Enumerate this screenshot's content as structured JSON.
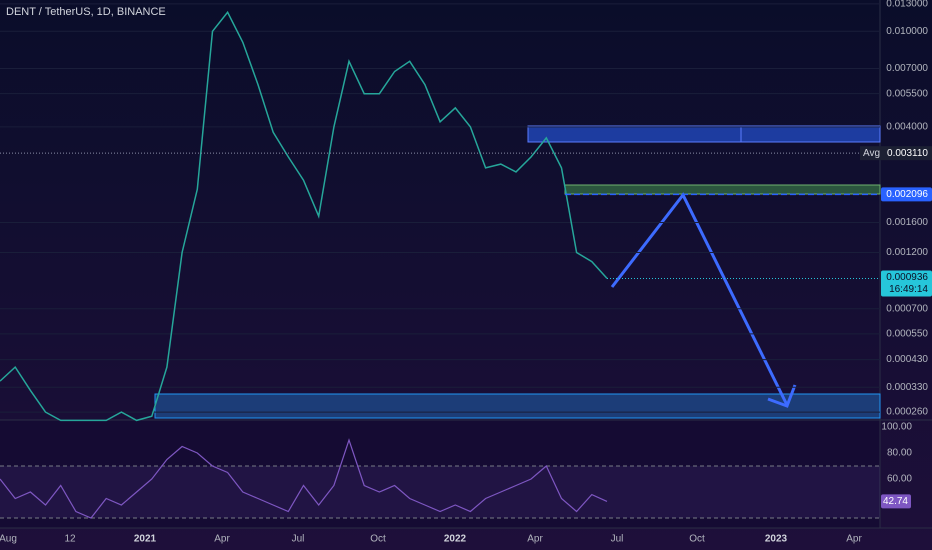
{
  "header": {
    "symbol": "DENT / TetherUS, 1D, BINANCE"
  },
  "price_axis": {
    "scale": "log",
    "range": [
      0.000241,
      0.0135
    ],
    "ticks": [
      {
        "value": 0.013,
        "label": "0.013000"
      },
      {
        "value": 0.01,
        "label": "0.010000"
      },
      {
        "value": 0.007,
        "label": "0.007000"
      },
      {
        "value": 0.0055,
        "label": "0.005500"
      },
      {
        "value": 0.004,
        "label": "0.004000"
      },
      {
        "value": 0.0016,
        "label": "0.001600"
      },
      {
        "value": 0.0012,
        "label": "0.001200"
      },
      {
        "value": 0.0007,
        "label": "0.000700"
      },
      {
        "value": 0.00055,
        "label": "0.000550"
      },
      {
        "value": 0.00043,
        "label": "0.000430"
      },
      {
        "value": 0.00033,
        "label": "0.000330"
      },
      {
        "value": 0.00026,
        "label": "0.000260"
      }
    ]
  },
  "markers": {
    "avg": {
      "label": "Avg",
      "price": {
        "value": 0.00311,
        "label": "0.003110"
      }
    },
    "level": {
      "value": 0.002096,
      "label": "0.002096"
    },
    "last": {
      "value": 0.000936,
      "label": "0.000936",
      "countdown": "16:49:14"
    }
  },
  "time_axis": {
    "labels": [
      "Aug",
      "12",
      "2021",
      "Apr",
      "Jul",
      "Oct",
      "2022",
      "Apr",
      "Jul",
      "Oct",
      "2023",
      "Apr"
    ]
  },
  "price": {
    "color": "#26a69a",
    "values": [
      0.00035,
      0.0004,
      0.00032,
      0.00026,
      0.00024,
      0.00024,
      0.00024,
      0.00024,
      0.00026,
      0.00024,
      0.00025,
      0.0004,
      0.0012,
      0.0022,
      0.01,
      0.012,
      0.009,
      0.006,
      0.0038,
      0.003,
      0.0024,
      0.0017,
      0.004,
      0.0075,
      0.0055,
      0.0055,
      0.0068,
      0.0075,
      0.006,
      0.0042,
      0.0048,
      0.004,
      0.0027,
      0.0028,
      0.0026,
      0.003,
      0.0036,
      0.0027,
      0.0012,
      0.0011,
      0.000936
    ]
  },
  "rsi": {
    "color": "#7e57c2",
    "range": [
      22.3,
      105.4
    ],
    "levels": [
      70,
      30
    ],
    "ticks": [
      {
        "value": 100,
        "label": "100.00"
      },
      {
        "value": 80,
        "label": "80.00"
      },
      {
        "value": 60,
        "label": "60.00"
      }
    ],
    "current": {
      "value": 42.74,
      "label": "42.74"
    },
    "values": [
      60,
      45,
      50,
      40,
      55,
      35,
      30,
      45,
      40,
      50,
      60,
      75,
      85,
      80,
      70,
      65,
      50,
      45,
      40,
      35,
      55,
      40,
      55,
      90,
      55,
      50,
      55,
      45,
      40,
      35,
      40,
      35,
      45,
      50,
      55,
      60,
      70,
      45,
      35,
      48,
      42.74
    ]
  }
}
